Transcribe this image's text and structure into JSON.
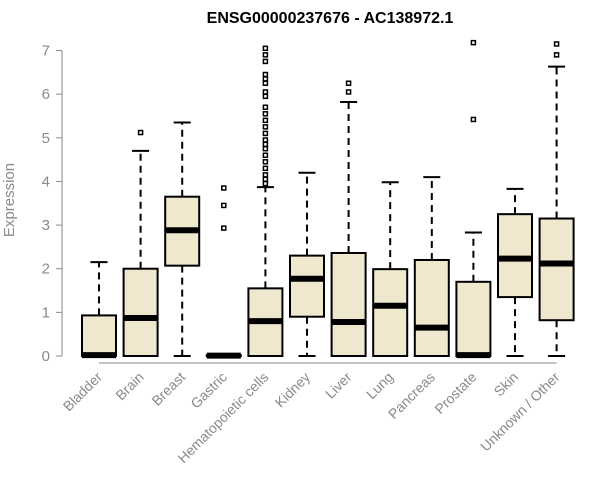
{
  "chart_data": {
    "type": "boxplot",
    "title": "ENSG00000237676 - AC138972.1",
    "ylabel": "Expression",
    "xlabel": "",
    "ylim": [
      0,
      7.2
    ],
    "yticks": [
      0,
      1,
      2,
      3,
      4,
      5,
      6,
      7
    ],
    "categories": [
      "Bladder",
      "Brain",
      "Breast",
      "Gastric",
      "Hematopoietic cells",
      "Kidney",
      "Liver",
      "Lung",
      "Pancreas",
      "Prostate",
      "Skin",
      "Unknown / Other"
    ],
    "box_fill": "#efe8cf",
    "boxes": [
      {
        "min": 0,
        "q1": 0,
        "median": 0.02,
        "q3": 0.93,
        "max": 2.15,
        "outliers": []
      },
      {
        "min": 0,
        "q1": 0,
        "median": 0.87,
        "q3": 2.0,
        "max": 4.7,
        "outliers": [
          5.12
        ]
      },
      {
        "min": 0,
        "q1": 2.07,
        "median": 2.88,
        "q3": 3.65,
        "max": 5.35,
        "outliers": []
      },
      {
        "min": 0,
        "q1": 0,
        "median": 0.01,
        "q3": 0.02,
        "max": 0.03,
        "outliers": [
          2.93,
          3.45,
          3.85
        ]
      },
      {
        "min": 0,
        "q1": 0,
        "median": 0.8,
        "q3": 1.55,
        "max": 3.87,
        "outliers": [
          3.95,
          4.05,
          4.15,
          4.3,
          4.45,
          4.6,
          4.75,
          4.85,
          4.95,
          5.1,
          5.25,
          5.4,
          5.55,
          5.7,
          5.95,
          6.05,
          6.25,
          6.35,
          6.45,
          6.75,
          6.9,
          7.05
        ]
      },
      {
        "min": 0,
        "q1": 0.9,
        "median": 1.77,
        "q3": 2.3,
        "max": 4.2,
        "outliers": []
      },
      {
        "min": 0,
        "q1": 0,
        "median": 0.78,
        "q3": 2.36,
        "max": 5.82,
        "outliers": [
          6.05,
          6.25
        ]
      },
      {
        "min": 0,
        "q1": 0,
        "median": 1.15,
        "q3": 1.99,
        "max": 3.98,
        "outliers": []
      },
      {
        "min": 0,
        "q1": 0,
        "median": 0.65,
        "q3": 2.2,
        "max": 4.1,
        "outliers": []
      },
      {
        "min": 0,
        "q1": 0,
        "median": 0.02,
        "q3": 1.7,
        "max": 2.83,
        "outliers": [
          5.42,
          7.18
        ]
      },
      {
        "min": 0,
        "q1": 1.35,
        "median": 2.23,
        "q3": 3.25,
        "max": 3.83,
        "outliers": []
      },
      {
        "min": 0,
        "q1": 0.82,
        "median": 2.12,
        "q3": 3.15,
        "max": 6.63,
        "outliers": [
          6.9,
          7.15
        ]
      }
    ]
  }
}
